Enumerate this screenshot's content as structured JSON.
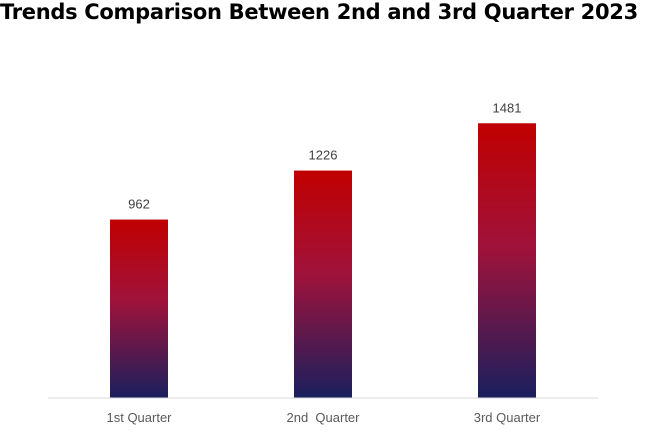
{
  "chart_data": {
    "type": "bar",
    "title": "Trends Comparison Between 2nd and 3rd Quarter 2023",
    "categories": [
      "1st Quarter",
      "2nd  Quarter",
      "3rd Quarter"
    ],
    "values": [
      962,
      1226,
      1481
    ],
    "value_labels": [
      "962",
      "1226",
      "1481"
    ],
    "xlabel": "",
    "ylabel": "",
    "ylim": [
      0,
      1600
    ],
    "grid": false,
    "legend": "none",
    "colors": {
      "bar_top": "#c00000",
      "bar_bottom": "#1a1f5e",
      "baseline": "#d9d9d9"
    }
  }
}
